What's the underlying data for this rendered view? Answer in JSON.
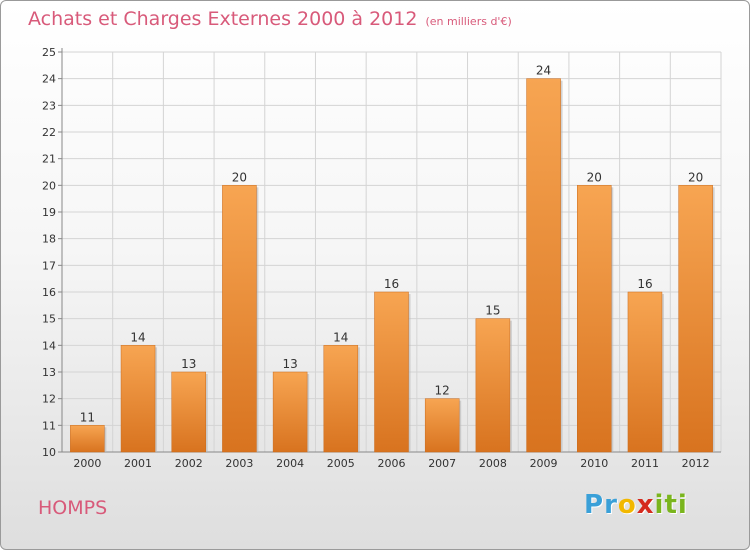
{
  "chart_data": {
    "type": "bar",
    "title": "Achats et Charges Externes 2000 à 2012",
    "subtitle": "(en milliers d'€)",
    "categories": [
      "2000",
      "2001",
      "2002",
      "2003",
      "2004",
      "2005",
      "2006",
      "2007",
      "2008",
      "2009",
      "2010",
      "2011",
      "2012"
    ],
    "values": [
      11,
      14,
      13,
      20,
      13,
      14,
      16,
      12,
      15,
      24,
      20,
      16,
      20
    ],
    "ylim": [
      10,
      25
    ],
    "yticks": [
      10,
      11,
      12,
      13,
      14,
      15,
      16,
      17,
      18,
      19,
      20,
      21,
      22,
      23,
      24,
      25
    ],
    "grid": true,
    "bar_color_top": "#f7a552",
    "bar_color_bottom": "#d8731f"
  },
  "footer": {
    "commune": "HOMPS",
    "logo": [
      "P",
      "r",
      "o",
      "x",
      "i",
      "t",
      "i"
    ],
    "logo_colors": [
      "#3aa0d8",
      "#3aa0d8",
      "#f2b800",
      "#d52a1e",
      "#7ab51d",
      "#7ab51d",
      "#7ab51d"
    ]
  }
}
